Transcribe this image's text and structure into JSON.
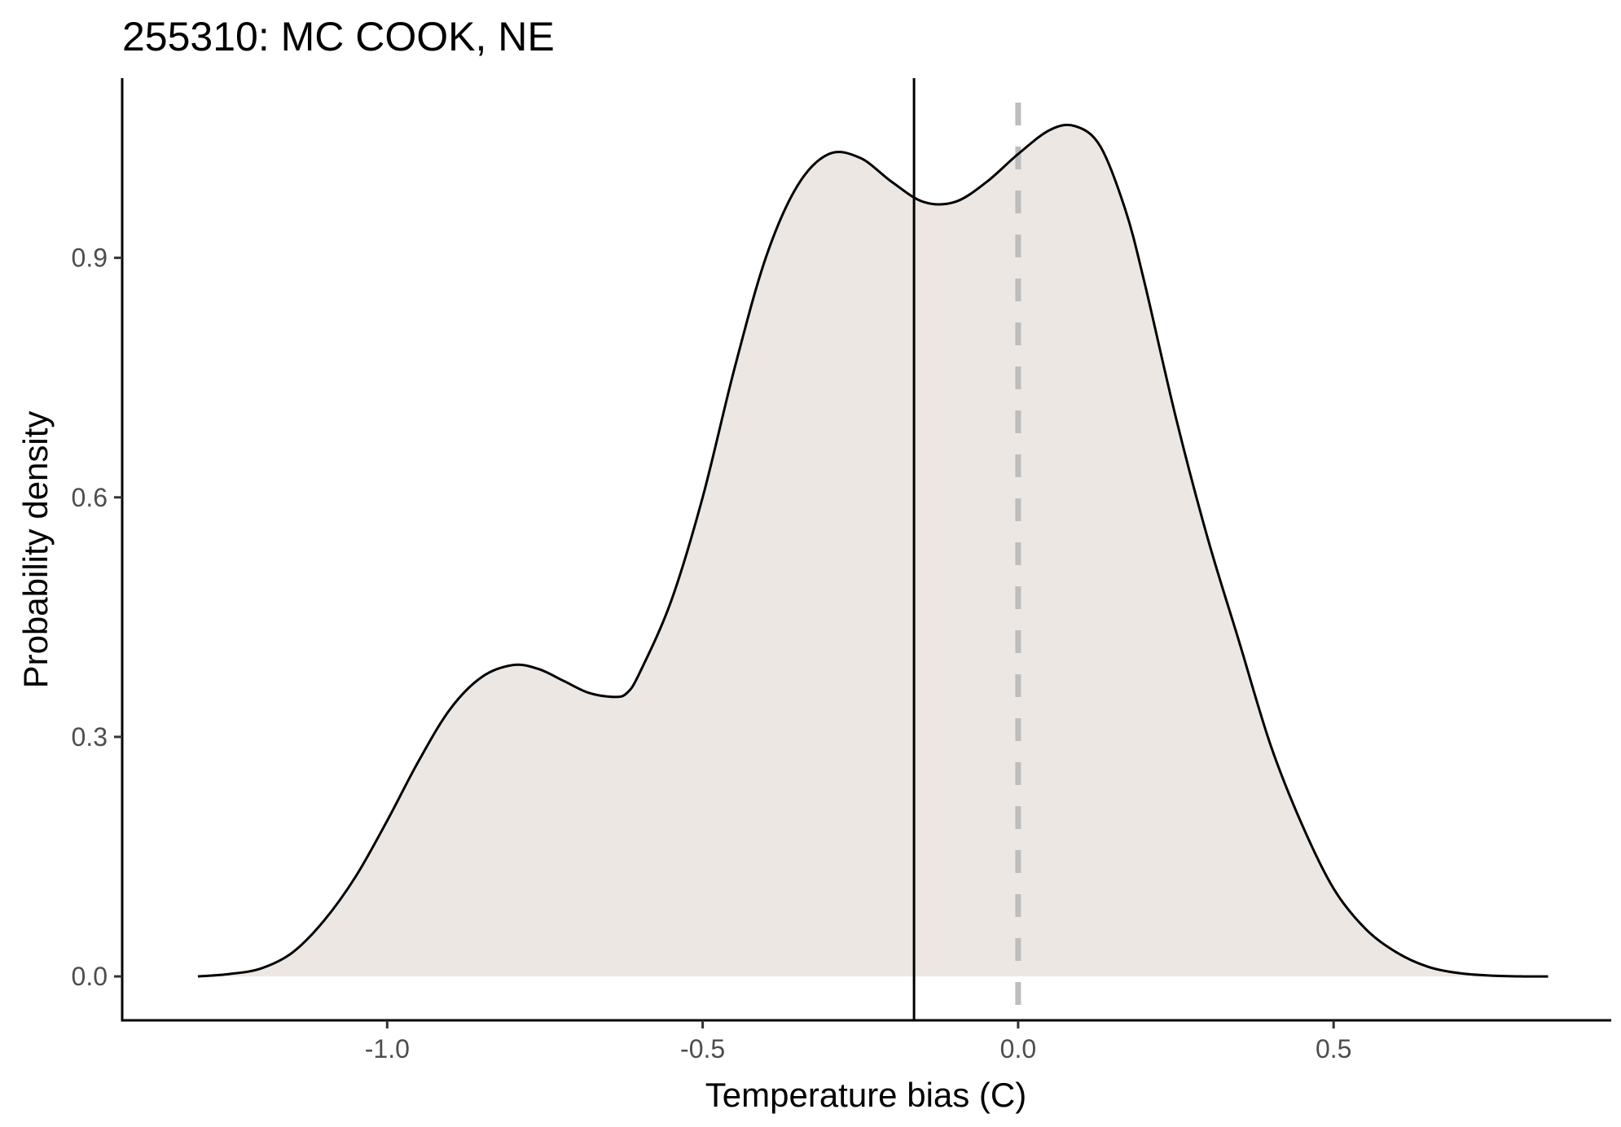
{
  "chart_data": {
    "type": "area",
    "title": "255310: MC COOK, NE",
    "xlabel": "Temperature bias (C)",
    "ylabel": "Probability density",
    "xlim": [
      -1.42,
      0.94
    ],
    "ylim": [
      -0.055,
      1.125
    ],
    "xticks": [
      -1.0,
      -0.5,
      0.0,
      0.5
    ],
    "xtick_labels": [
      "-1.0",
      "-0.5",
      "0.0",
      "0.5"
    ],
    "yticks": [
      0.0,
      0.3,
      0.6,
      0.9
    ],
    "ytick_labels": [
      "0.0",
      "0.3",
      "0.6",
      "0.9"
    ],
    "grid": false,
    "fill_color": "#ede7e3",
    "line_color": "#000000",
    "series": [
      {
        "x": [
          -1.3,
          -1.25,
          -1.2,
          -1.15,
          -1.1,
          -1.05,
          -1.0,
          -0.95,
          -0.9,
          -0.85,
          -0.8,
          -0.76,
          -0.72,
          -0.68,
          -0.64,
          -0.62,
          -0.6,
          -0.55,
          -0.5,
          -0.45,
          -0.4,
          -0.35,
          -0.3,
          -0.25,
          -0.2,
          -0.15,
          -0.1,
          -0.05,
          0.0,
          0.05,
          0.09,
          0.13,
          0.17,
          0.2,
          0.25,
          0.3,
          0.35,
          0.4,
          0.45,
          0.5,
          0.55,
          0.6,
          0.65,
          0.7,
          0.75,
          0.8,
          0.84
        ],
        "y": [
          0.0,
          0.003,
          0.01,
          0.03,
          0.07,
          0.125,
          0.195,
          0.27,
          0.335,
          0.375,
          0.39,
          0.385,
          0.37,
          0.355,
          0.35,
          0.355,
          0.38,
          0.47,
          0.6,
          0.76,
          0.9,
          0.99,
          1.03,
          1.025,
          0.995,
          0.97,
          0.97,
          0.995,
          1.03,
          1.06,
          1.065,
          1.04,
          0.96,
          0.87,
          0.7,
          0.55,
          0.42,
          0.29,
          0.19,
          0.11,
          0.06,
          0.03,
          0.012,
          0.004,
          0.001,
          0.0,
          0.0
        ]
      }
    ],
    "annotations": [
      {
        "type": "vline",
        "x": -0.165,
        "color": "#000000",
        "style": "solid"
      },
      {
        "type": "vline",
        "x": 0.0,
        "color": "#bdbdbd",
        "style": "dashed"
      }
    ]
  }
}
